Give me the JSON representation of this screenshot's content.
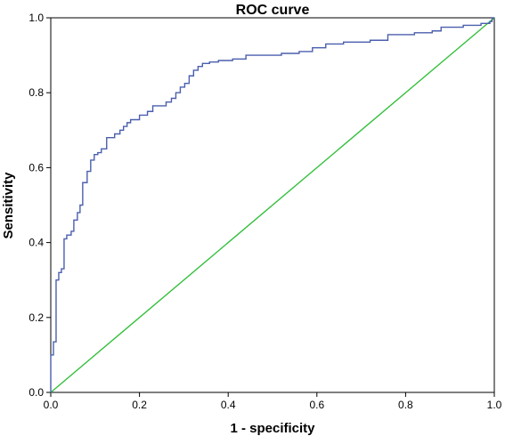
{
  "chart_data": {
    "type": "line",
    "title": "ROC curve",
    "xlabel": "1 - specificity",
    "ylabel": "Sensitivity",
    "xlim": [
      0.0,
      1.0
    ],
    "ylim": [
      0.0,
      1.0
    ],
    "x_ticks": [
      "0.0",
      "0.2",
      "0.4",
      "0.6",
      "0.8",
      "1.0"
    ],
    "y_ticks": [
      "0.0",
      "0.2",
      "0.4",
      "0.6",
      "0.8",
      "1.0"
    ],
    "grid": false,
    "legend": "none",
    "colors": {
      "roc": "#4a5fae",
      "reference": "#33bf3b"
    },
    "series": [
      {
        "values": [
          [
            0.0,
            0.0
          ],
          [
            0.0,
            0.1
          ],
          [
            0.006,
            0.1
          ],
          [
            0.006,
            0.135
          ],
          [
            0.012,
            0.135
          ],
          [
            0.012,
            0.3
          ],
          [
            0.018,
            0.3
          ],
          [
            0.018,
            0.32
          ],
          [
            0.024,
            0.32
          ],
          [
            0.024,
            0.33
          ],
          [
            0.03,
            0.33
          ],
          [
            0.03,
            0.41
          ],
          [
            0.036,
            0.41
          ],
          [
            0.036,
            0.42
          ],
          [
            0.046,
            0.42
          ],
          [
            0.046,
            0.43
          ],
          [
            0.052,
            0.43
          ],
          [
            0.052,
            0.46
          ],
          [
            0.06,
            0.46
          ],
          [
            0.06,
            0.48
          ],
          [
            0.066,
            0.48
          ],
          [
            0.066,
            0.5
          ],
          [
            0.072,
            0.5
          ],
          [
            0.072,
            0.56
          ],
          [
            0.082,
            0.56
          ],
          [
            0.082,
            0.59
          ],
          [
            0.09,
            0.59
          ],
          [
            0.09,
            0.62
          ],
          [
            0.098,
            0.62
          ],
          [
            0.098,
            0.635
          ],
          [
            0.106,
            0.635
          ],
          [
            0.106,
            0.64
          ],
          [
            0.114,
            0.64
          ],
          [
            0.114,
            0.65
          ],
          [
            0.126,
            0.65
          ],
          [
            0.126,
            0.68
          ],
          [
            0.144,
            0.68
          ],
          [
            0.144,
            0.69
          ],
          [
            0.156,
            0.69
          ],
          [
            0.156,
            0.7
          ],
          [
            0.164,
            0.7
          ],
          [
            0.164,
            0.71
          ],
          [
            0.172,
            0.71
          ],
          [
            0.172,
            0.72
          ],
          [
            0.18,
            0.72
          ],
          [
            0.18,
            0.728
          ],
          [
            0.2,
            0.728
          ],
          [
            0.2,
            0.74
          ],
          [
            0.218,
            0.74
          ],
          [
            0.218,
            0.75
          ],
          [
            0.23,
            0.75
          ],
          [
            0.23,
            0.765
          ],
          [
            0.26,
            0.765
          ],
          [
            0.26,
            0.775
          ],
          [
            0.272,
            0.775
          ],
          [
            0.272,
            0.785
          ],
          [
            0.282,
            0.785
          ],
          [
            0.282,
            0.8
          ],
          [
            0.292,
            0.8
          ],
          [
            0.292,
            0.815
          ],
          [
            0.302,
            0.815
          ],
          [
            0.302,
            0.825
          ],
          [
            0.312,
            0.825
          ],
          [
            0.312,
            0.845
          ],
          [
            0.322,
            0.845
          ],
          [
            0.322,
            0.86
          ],
          [
            0.332,
            0.86
          ],
          [
            0.332,
            0.87
          ],
          [
            0.342,
            0.87
          ],
          [
            0.342,
            0.878
          ],
          [
            0.358,
            0.878
          ],
          [
            0.358,
            0.882
          ],
          [
            0.378,
            0.882
          ],
          [
            0.378,
            0.886
          ],
          [
            0.41,
            0.886
          ],
          [
            0.41,
            0.89
          ],
          [
            0.44,
            0.89
          ],
          [
            0.44,
            0.9
          ],
          [
            0.52,
            0.9
          ],
          [
            0.52,
            0.905
          ],
          [
            0.56,
            0.905
          ],
          [
            0.56,
            0.91
          ],
          [
            0.59,
            0.91
          ],
          [
            0.59,
            0.92
          ],
          [
            0.62,
            0.92
          ],
          [
            0.62,
            0.93
          ],
          [
            0.66,
            0.93
          ],
          [
            0.66,
            0.935
          ],
          [
            0.72,
            0.935
          ],
          [
            0.72,
            0.94
          ],
          [
            0.76,
            0.94
          ],
          [
            0.76,
            0.955
          ],
          [
            0.82,
            0.955
          ],
          [
            0.82,
            0.96
          ],
          [
            0.86,
            0.96
          ],
          [
            0.86,
            0.965
          ],
          [
            0.88,
            0.965
          ],
          [
            0.88,
            0.975
          ],
          [
            0.93,
            0.975
          ],
          [
            0.93,
            0.98
          ],
          [
            0.97,
            0.98
          ],
          [
            0.97,
            0.985
          ],
          [
            0.99,
            0.985
          ],
          [
            0.99,
            0.99
          ],
          [
            0.995,
            0.99
          ],
          [
            0.995,
            1.0
          ],
          [
            1.0,
            1.0
          ]
        ]
      },
      {
        "values": [
          [
            0.0,
            0.0
          ],
          [
            1.0,
            1.0
          ]
        ]
      }
    ]
  }
}
